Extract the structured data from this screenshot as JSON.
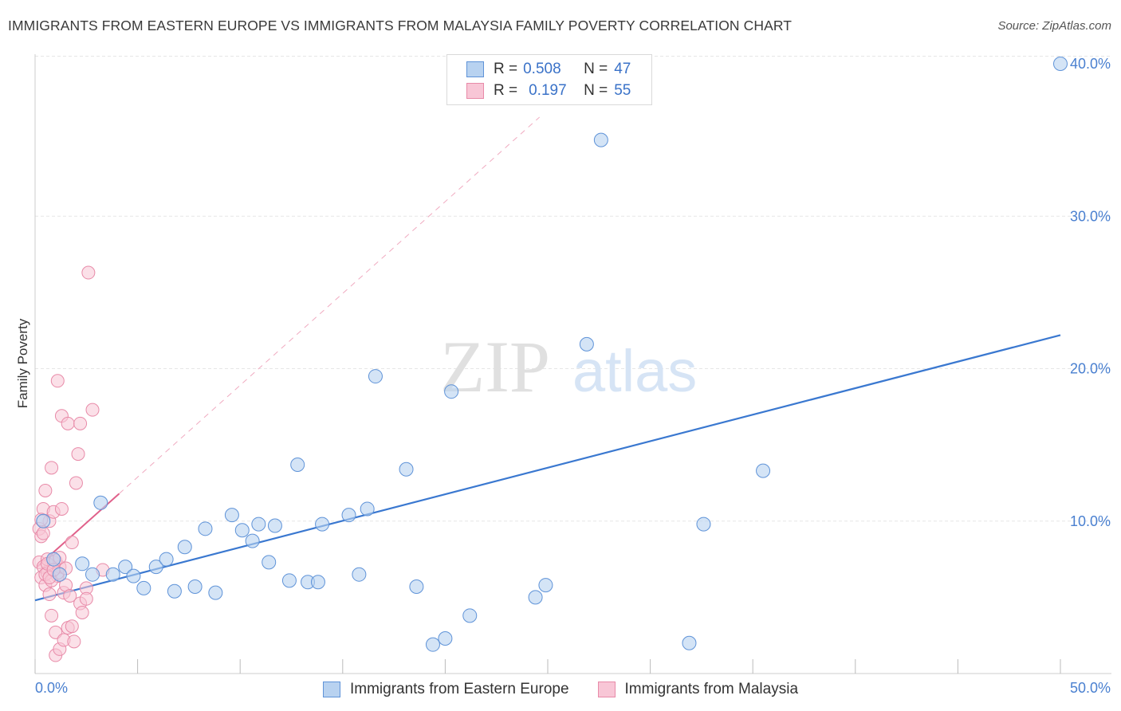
{
  "title": "IMMIGRANTS FROM EASTERN EUROPE VS IMMIGRANTS FROM MALAYSIA FAMILY POVERTY CORRELATION CHART",
  "source": "Source: ZipAtlas.com",
  "watermark": {
    "zip": "ZIP",
    "atlas": "atlas"
  },
  "legend": {
    "r_label": "R =",
    "n_label": "N =",
    "rows": [
      {
        "series": "Immigrants from Eastern Europe",
        "r": "0.508",
        "n": "47"
      },
      {
        "series": "Immigrants from Malaysia",
        "r": "0.197",
        "n": "55"
      }
    ]
  },
  "colors": {
    "blue_fill": "#b8d2f0",
    "blue_stroke": "#5f93d8",
    "blue_line": "#3a78d0",
    "pink_fill": "#f8c6d6",
    "pink_stroke": "#e88aa8",
    "pink_line": "#e0608a",
    "tick_text": "#4a80d0",
    "grid": "#e6e6e6"
  },
  "chart_data": {
    "type": "scatter",
    "title": "IMMIGRANTS FROM EASTERN EUROPE VS IMMIGRANTS FROM MALAYSIA FAMILY POVERTY CORRELATION CHART",
    "xlabel": "",
    "ylabel": "Family Poverty",
    "xlim": [
      0,
      50
    ],
    "ylim": [
      0,
      40
    ],
    "x_tick_labels": [
      {
        "value": 0,
        "label": "0.0%"
      },
      {
        "value": 50,
        "label": "50.0%"
      }
    ],
    "y_tick_labels": [
      {
        "value": 10,
        "label": "10.0%"
      },
      {
        "value": 20,
        "label": "20.0%"
      },
      {
        "value": 30,
        "label": "30.0%"
      },
      {
        "value": 40,
        "label": "40.0%"
      }
    ],
    "y_gridlines": [
      10,
      20,
      30,
      40.5
    ],
    "series": [
      {
        "name": "Immigrants from Eastern Europe",
        "color": "blue",
        "points": [
          [
            0.4,
            10.0
          ],
          [
            0.9,
            7.5
          ],
          [
            1.2,
            6.5
          ],
          [
            2.3,
            7.2
          ],
          [
            2.8,
            6.5
          ],
          [
            3.2,
            11.2
          ],
          [
            3.8,
            6.5
          ],
          [
            4.4,
            7.0
          ],
          [
            4.8,
            6.4
          ],
          [
            5.3,
            5.6
          ],
          [
            5.9,
            7.0
          ],
          [
            6.4,
            7.5
          ],
          [
            6.8,
            5.4
          ],
          [
            7.3,
            8.3
          ],
          [
            7.8,
            5.7
          ],
          [
            8.3,
            9.5
          ],
          [
            8.8,
            5.3
          ],
          [
            9.6,
            10.4
          ],
          [
            10.1,
            9.4
          ],
          [
            10.6,
            8.7
          ],
          [
            10.9,
            9.8
          ],
          [
            11.4,
            7.3
          ],
          [
            11.7,
            9.7
          ],
          [
            12.4,
            6.1
          ],
          [
            12.8,
            13.7
          ],
          [
            13.3,
            6.0
          ],
          [
            13.8,
            6.0
          ],
          [
            14.0,
            9.8
          ],
          [
            15.3,
            10.4
          ],
          [
            15.8,
            6.5
          ],
          [
            16.2,
            10.8
          ],
          [
            16.6,
            19.5
          ],
          [
            18.1,
            13.4
          ],
          [
            18.6,
            5.7
          ],
          [
            19.4,
            1.9
          ],
          [
            20.0,
            2.3
          ],
          [
            20.3,
            18.5
          ],
          [
            21.2,
            3.8
          ],
          [
            24.4,
            5.0
          ],
          [
            24.9,
            5.8
          ],
          [
            26.9,
            21.6
          ],
          [
            27.6,
            35.0
          ],
          [
            31.9,
            2.0
          ],
          [
            32.6,
            9.8
          ],
          [
            35.5,
            13.3
          ],
          [
            50.0,
            40.0
          ]
        ],
        "trendline": {
          "x": [
            0,
            50
          ],
          "y": [
            4.8,
            22.2
          ],
          "r": 0.508,
          "n": 47
        }
      },
      {
        "name": "Immigrants from Malaysia",
        "color": "pink",
        "points": [
          [
            0.2,
            9.5
          ],
          [
            0.2,
            7.3
          ],
          [
            0.3,
            9.0
          ],
          [
            0.3,
            6.3
          ],
          [
            0.4,
            10.8
          ],
          [
            0.4,
            7.0
          ],
          [
            0.5,
            5.8
          ],
          [
            0.5,
            12.0
          ],
          [
            0.6,
            7.5
          ],
          [
            0.6,
            6.6
          ],
          [
            0.7,
            10.0
          ],
          [
            0.7,
            5.2
          ],
          [
            0.8,
            3.8
          ],
          [
            0.8,
            13.5
          ],
          [
            0.9,
            7.3
          ],
          [
            0.9,
            10.6
          ],
          [
            1.0,
            2.7
          ],
          [
            1.0,
            1.2
          ],
          [
            1.1,
            19.2
          ],
          [
            1.1,
            6.4
          ],
          [
            1.2,
            7.0
          ],
          [
            1.2,
            1.6
          ],
          [
            1.3,
            16.9
          ],
          [
            1.3,
            10.8
          ],
          [
            1.4,
            5.3
          ],
          [
            1.4,
            2.2
          ],
          [
            1.5,
            5.8
          ],
          [
            1.6,
            16.4
          ],
          [
            1.6,
            3.0
          ],
          [
            1.7,
            5.1
          ],
          [
            1.8,
            8.6
          ],
          [
            1.8,
            3.1
          ],
          [
            1.9,
            2.1
          ],
          [
            2.0,
            12.5
          ],
          [
            2.1,
            14.4
          ],
          [
            2.2,
            16.4
          ],
          [
            2.2,
            4.6
          ],
          [
            2.3,
            4.0
          ],
          [
            2.5,
            5.6
          ],
          [
            2.6,
            26.3
          ],
          [
            2.8,
            17.3
          ],
          [
            3.3,
            6.8
          ],
          [
            0.3,
            10.1
          ],
          [
            0.5,
            6.5
          ],
          [
            0.6,
            7.2
          ],
          [
            0.8,
            6.1
          ],
          [
            1.0,
            7.4
          ],
          [
            1.1,
            6.6
          ],
          [
            1.2,
            7.6
          ],
          [
            1.5,
            6.9
          ],
          [
            2.5,
            4.9
          ],
          [
            0.4,
            9.2
          ],
          [
            0.7,
            6.3
          ],
          [
            0.9,
            6.8
          ]
        ],
        "trendline": {
          "x": [
            0.1,
            4.1
          ],
          "y": [
            7.0,
            11.8
          ],
          "r": 0.197,
          "n": 55
        },
        "trendline_dashed_extension": {
          "x": [
            4.1,
            24.6
          ],
          "y": [
            11.8,
            36.5
          ]
        }
      }
    ]
  }
}
